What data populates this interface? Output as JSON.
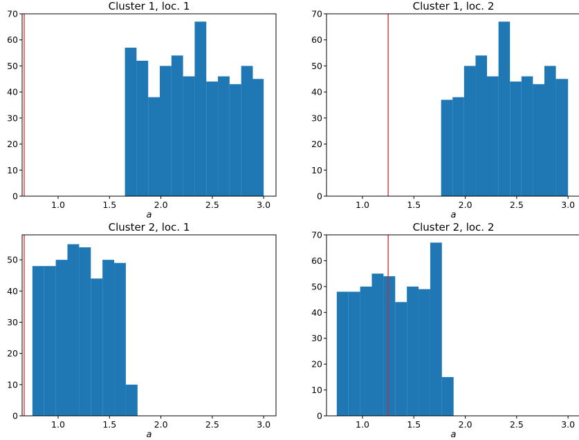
{
  "chart_data": [
    {
      "type": "bar",
      "title": "Cluster 1, loc. 1",
      "xlabel": "a",
      "ylabel": "",
      "xlim": [
        0.65,
        3.12
      ],
      "ylim": [
        0,
        70
      ],
      "xticks": [
        1.0,
        1.5,
        2.0,
        2.5,
        3.0
      ],
      "xtick_labels": [
        "1.0",
        "1.5",
        "2.0",
        "2.5",
        "3.0"
      ],
      "yticks": [
        0,
        10,
        20,
        30,
        40,
        50,
        60,
        70
      ],
      "ytick_labels": [
        "0",
        "10",
        "20",
        "30",
        "40",
        "50",
        "60",
        "70"
      ],
      "bin_edges": [
        1.65,
        1.7631,
        1.8763,
        1.9894,
        2.1025,
        2.2156,
        2.3288,
        2.4419,
        2.555,
        2.6681,
        2.7813,
        2.8944,
        3.0
      ],
      "values": [
        57,
        52,
        38,
        50,
        54,
        46,
        67,
        44,
        46,
        43,
        50,
        45
      ],
      "vline": 0.67,
      "bar_color": "#1f77b4",
      "vline_color": "#d62728"
    },
    {
      "type": "bar",
      "title": "Cluster 1, loc. 2",
      "xlabel": "a",
      "ylabel": "",
      "xlim": [
        0.65,
        3.12
      ],
      "ylim": [
        0,
        70
      ],
      "xticks": [
        1.0,
        1.5,
        2.0,
        2.5,
        3.0
      ],
      "xtick_labels": [
        "1.0",
        "1.5",
        "2.0",
        "2.5",
        "3.0"
      ],
      "yticks": [
        0,
        10,
        20,
        30,
        40,
        50,
        60,
        70
      ],
      "ytick_labels": [
        "0",
        "10",
        "20",
        "30",
        "40",
        "50",
        "60",
        "70"
      ],
      "bin_edges": [
        1.765,
        1.8767,
        1.9883,
        2.1,
        2.2116,
        2.3233,
        2.4349,
        2.5466,
        2.6582,
        2.7699,
        2.8815,
        3.0
      ],
      "values": [
        37,
        38,
        50,
        54,
        46,
        67,
        44,
        46,
        43,
        50,
        45
      ],
      "vline": 1.25,
      "bar_color": "#1f77b4",
      "vline_color": "#d62728"
    },
    {
      "type": "bar",
      "title": "Cluster 2, loc. 1",
      "xlabel": "a",
      "ylabel": "",
      "xlim": [
        0.65,
        3.12
      ],
      "ylim": [
        0,
        58
      ],
      "xticks": [
        1.0,
        1.5,
        2.0,
        2.5,
        3.0
      ],
      "xtick_labels": [
        "1.0",
        "1.5",
        "2.0",
        "2.5",
        "3.0"
      ],
      "yticks": [
        0,
        10,
        20,
        30,
        40,
        50
      ],
      "ytick_labels": [
        "0",
        "10",
        "20",
        "30",
        "40",
        "50"
      ],
      "bin_edges": [
        0.75,
        0.8636,
        0.9773,
        1.0909,
        1.2045,
        1.3182,
        1.4318,
        1.5455,
        1.6591,
        1.7727
      ],
      "values": [
        48,
        48,
        50,
        55,
        54,
        44,
        50,
        49,
        10
      ],
      "vline": 0.67,
      "bar_color": "#1f77b4",
      "vline_color": "#d62728"
    },
    {
      "type": "bar",
      "title": "Cluster 2, loc. 2",
      "xlabel": "a",
      "ylabel": "",
      "xlim": [
        0.65,
        3.12
      ],
      "ylim": [
        0,
        70
      ],
      "xticks": [
        1.0,
        1.5,
        2.0,
        2.5,
        3.0
      ],
      "xtick_labels": [
        "1.0",
        "1.5",
        "2.0",
        "2.5",
        "3.0"
      ],
      "yticks": [
        0,
        10,
        20,
        30,
        40,
        50,
        60,
        70
      ],
      "ytick_labels": [
        "0",
        "10",
        "20",
        "30",
        "40",
        "50",
        "60",
        "70"
      ],
      "bin_edges": [
        0.75,
        0.8636,
        0.9773,
        1.0909,
        1.2045,
        1.3182,
        1.4318,
        1.5455,
        1.6591,
        1.7727,
        1.8864
      ],
      "values": [
        48,
        48,
        50,
        55,
        54,
        44,
        50,
        49,
        67,
        15
      ],
      "vline": 1.25,
      "bar_color": "#1f77b4",
      "vline_color": "#d62728"
    }
  ]
}
